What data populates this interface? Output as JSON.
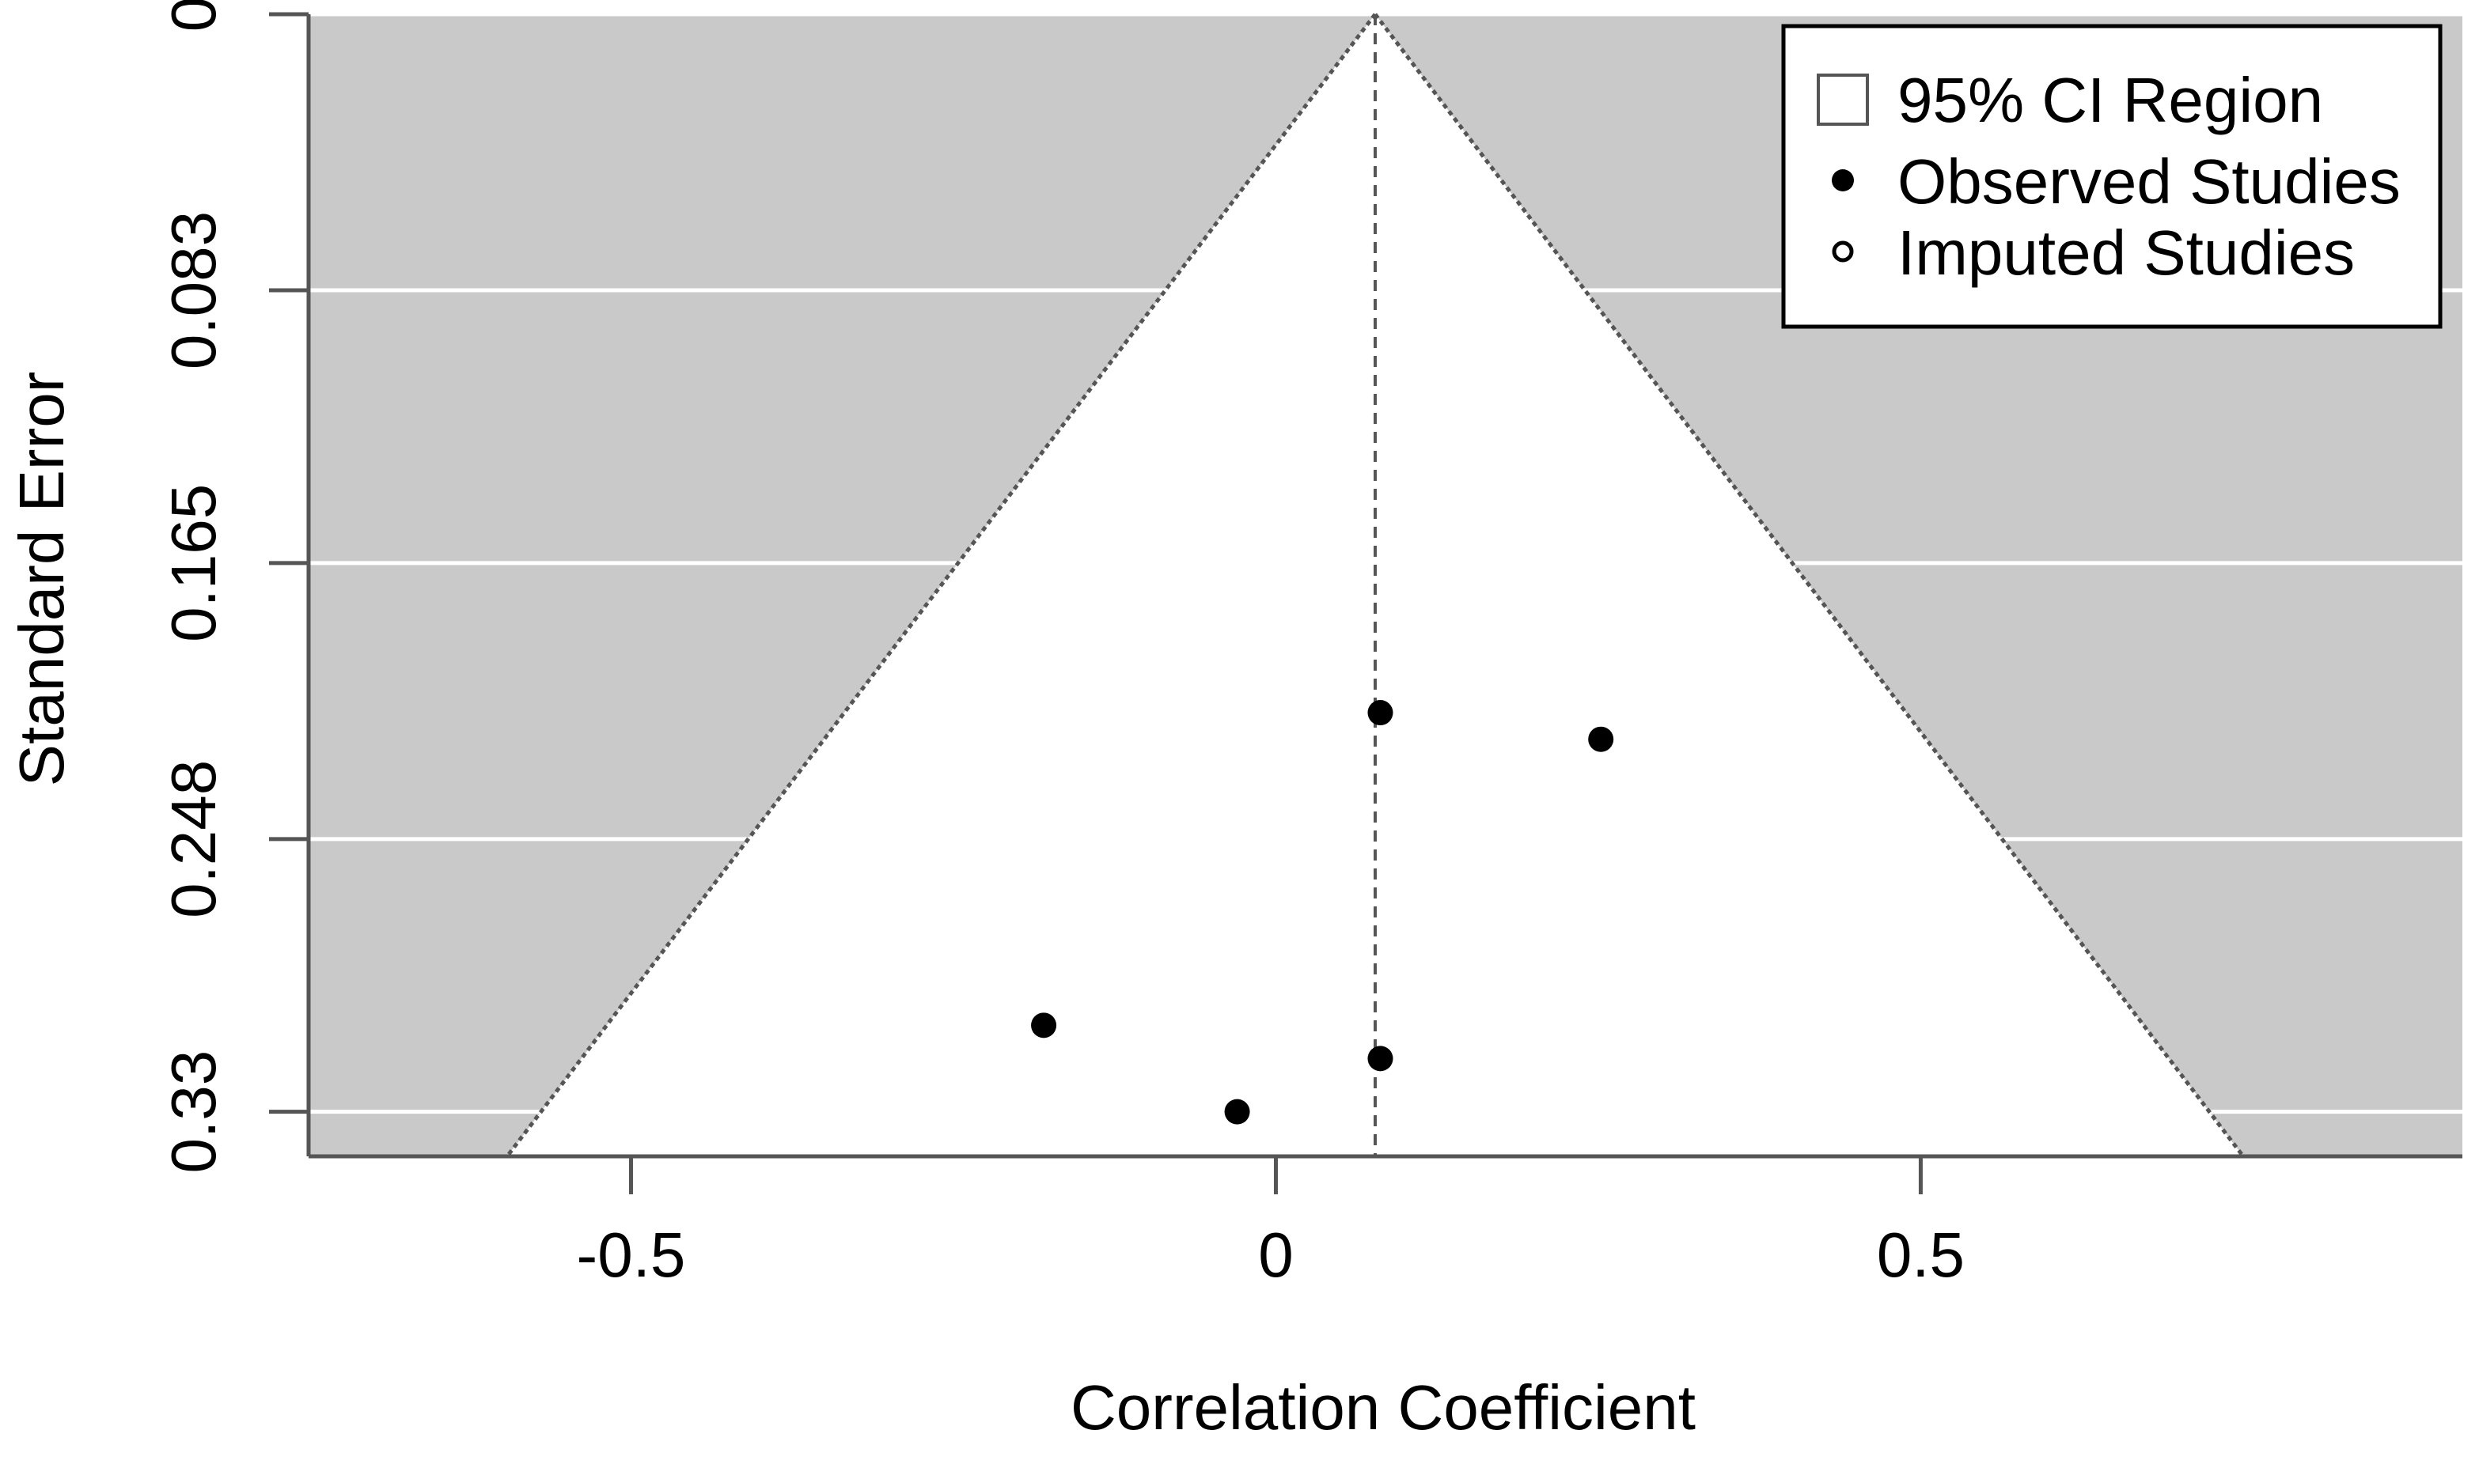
{
  "chart_data": {
    "type": "scatter",
    "title": "",
    "xlabel": "Correlation Coefficient",
    "ylabel": "Standard Error",
    "xlim": [
      -0.75,
      0.92
    ],
    "ylim": [
      0.3434,
      0
    ],
    "x_ticks": [
      -0.5,
      0,
      0.5
    ],
    "x_tick_labels": [
      "-0.5",
      "0",
      "0.5"
    ],
    "y_ticks": [
      0,
      0.083,
      0.165,
      0.248,
      0.33
    ],
    "y_tick_labels": [
      "0",
      "0.083",
      "0.165",
      "0.248",
      "0.33"
    ],
    "y_axis_inverted": true,
    "grid": "horizontal",
    "center_estimate": 0.077,
    "funnel_z": 1.96,
    "funnel_apex": [
      0.077,
      0
    ],
    "series": [
      {
        "name": "Observed Studies",
        "marker": "filled-circle",
        "points": [
          {
            "x": 0.081,
            "y": 0.21
          },
          {
            "x": 0.252,
            "y": 0.218
          },
          {
            "x": -0.18,
            "y": 0.304
          },
          {
            "x": 0.081,
            "y": 0.314
          },
          {
            "x": -0.03,
            "y": 0.33
          }
        ]
      },
      {
        "name": "Imputed Studies",
        "marker": "open-circle",
        "points": []
      }
    ],
    "legend": {
      "placement": "top-right",
      "entries": [
        {
          "label": "95% CI Region",
          "symbol": "open-square"
        },
        {
          "label": "Observed Studies",
          "symbol": "filled-circle"
        },
        {
          "label": "Imputed Studies",
          "symbol": "open-circle"
        }
      ]
    },
    "colors": {
      "shaded_region": "#c9c9c9",
      "funnel_interior": "#ffffff",
      "gridline": "#ffffff",
      "funnel_line": "#555555",
      "point": "#000000",
      "axis": "#555555"
    }
  }
}
